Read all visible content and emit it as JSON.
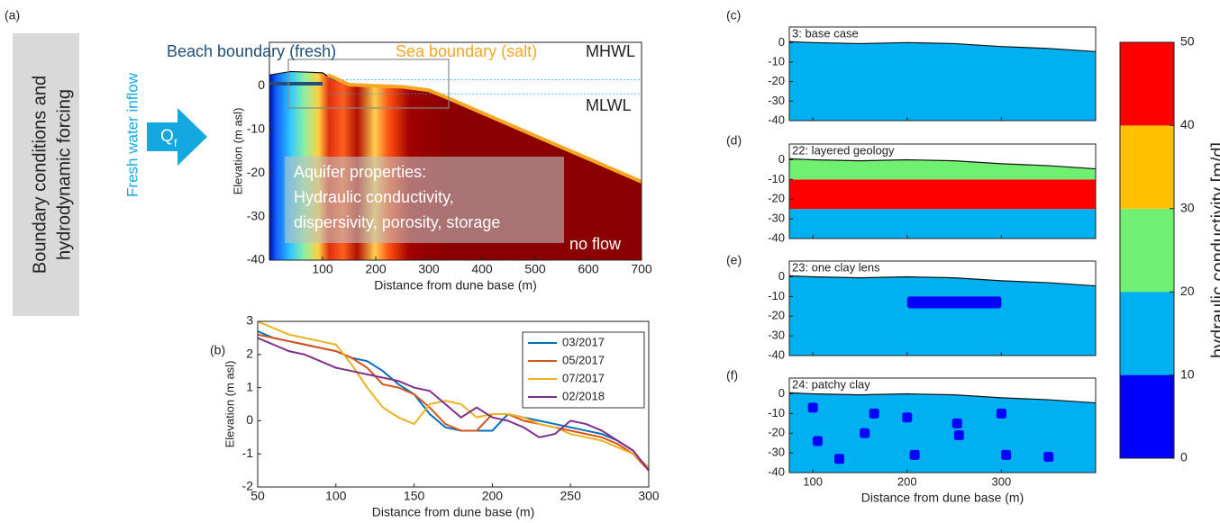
{
  "side_label": [
    "Boundary conditions and",
    "hydrodynamic forcing"
  ],
  "inflow": {
    "label": "Fresh water inflow",
    "q": "Q",
    "q_sub": "f"
  },
  "chart_data": [
    {
      "type": "overview",
      "panel": "(a)",
      "xlabel": "Distance from dune base (m)",
      "ylabel": "Elevation (m asl)",
      "xlim": [
        0,
        700
      ],
      "ylim": [
        -40,
        10
      ],
      "xticks": [
        100,
        200,
        300,
        400,
        500,
        600,
        700
      ],
      "yticks": [
        -40,
        -30,
        -20,
        -10,
        0
      ],
      "surface": {
        "x": [
          0,
          40,
          100,
          120,
          160,
          200,
          250,
          300,
          330,
          700
        ],
        "y": [
          2.5,
          3.3,
          3,
          1.5,
          0,
          0.2,
          0,
          -1,
          -2.5,
          -22
        ]
      },
      "beach_boundary": {
        "label": "Beach boundary (fresh)",
        "color": "#1f4e79",
        "x": [
          0,
          100
        ],
        "y": [
          0.5,
          0.5
        ]
      },
      "sea_boundary": {
        "label": "Sea boundary (salt)",
        "color": "#f5a623",
        "x": [
          110,
          150,
          200,
          250,
          300,
          330,
          700
        ],
        "y": [
          2.5,
          0.3,
          0,
          -0.2,
          -1,
          -2.5,
          -22
        ]
      },
      "mhwl": {
        "label": "MHWL",
        "y": 1.4
      },
      "mlwl": {
        "label": "MLWL",
        "y": -1.8
      },
      "annotations": [
        "Aquifer properties:",
        "Hydraulic conductivity,",
        "dispersivity, porosity, storage",
        "no flow"
      ]
    },
    {
      "type": "line",
      "panel": "(b)",
      "xlabel": "Distance from dune base (m)",
      "ylabel": "Elevation (m asl)",
      "xlim": [
        50,
        300
      ],
      "ylim": [
        -2,
        3
      ],
      "xticks": [
        50,
        100,
        150,
        200,
        250,
        300
      ],
      "yticks": [
        -2,
        -1,
        0,
        1,
        2,
        3
      ],
      "x": [
        50,
        60,
        70,
        80,
        90,
        100,
        110,
        120,
        130,
        140,
        150,
        160,
        170,
        180,
        190,
        200,
        210,
        220,
        230,
        240,
        250,
        260,
        270,
        280,
        290,
        300
      ],
      "series": [
        {
          "name": "03/2017",
          "color": "#0072bd",
          "values": [
            2.7,
            2.5,
            2.4,
            2.3,
            2.2,
            2.1,
            1.9,
            1.8,
            1.5,
            1.1,
            0.8,
            0.2,
            -0.2,
            -0.3,
            -0.3,
            -0.3,
            0.2,
            0.1,
            0.0,
            -0.1,
            -0.2,
            -0.3,
            -0.4,
            -0.6,
            -0.9,
            -1.5
          ]
        },
        {
          "name": "05/2017",
          "color": "#d95319",
          "values": [
            2.6,
            2.5,
            2.4,
            2.3,
            2.2,
            2.1,
            1.9,
            1.6,
            1.1,
            1.0,
            0.8,
            0.4,
            -0.1,
            -0.3,
            -0.3,
            0.2,
            0.2,
            0.0,
            -0.1,
            -0.2,
            -0.3,
            -0.4,
            -0.5,
            -0.7,
            -1.0,
            -1.5
          ]
        },
        {
          "name": "07/2017",
          "color": "#edb120",
          "values": [
            3.0,
            2.8,
            2.6,
            2.5,
            2.4,
            2.3,
            1.7,
            1.0,
            0.4,
            0.1,
            -0.1,
            0.5,
            0.6,
            0.5,
            0.1,
            0.2,
            0.2,
            0.1,
            -0.1,
            -0.2,
            -0.4,
            -0.5,
            -0.6,
            -0.8,
            -1.0,
            -1.4
          ]
        },
        {
          "name": "02/2018",
          "color": "#7e2f8e",
          "values": [
            2.5,
            2.3,
            2.1,
            2.0,
            1.8,
            1.6,
            1.5,
            1.4,
            1.3,
            1.2,
            1.0,
            0.9,
            0.5,
            0.1,
            0.4,
            0.1,
            0.0,
            -0.2,
            -0.5,
            -0.4,
            0.0,
            -0.1,
            -0.3,
            -0.6,
            -0.9,
            -1.5
          ]
        }
      ]
    },
    {
      "type": "section",
      "panel": "(c)",
      "title": "3: base case",
      "xlim": [
        75,
        400
      ],
      "ylim": [
        -40,
        8
      ],
      "xticks": [
        100,
        200,
        300
      ],
      "yticks": [
        -40,
        -30,
        -20,
        -10,
        0
      ],
      "show_xticklabels": false,
      "surface": {
        "x": [
          75,
          100,
          150,
          200,
          250,
          300,
          350,
          400
        ],
        "y": [
          0.5,
          0,
          -0.5,
          0,
          -0.5,
          -2,
          -3,
          -4.6
        ]
      },
      "layers": [
        {
          "from": -40,
          "to": 8,
          "color": "#00b0f0"
        }
      ]
    },
    {
      "type": "section",
      "panel": "(d)",
      "title": "22: layered geology",
      "xlim": [
        75,
        400
      ],
      "ylim": [
        -40,
        8
      ],
      "xticks": [
        100,
        200,
        300
      ],
      "yticks": [
        -40,
        -30,
        -20,
        -10,
        0
      ],
      "show_xticklabels": false,
      "surface": {
        "x": [
          75,
          100,
          150,
          200,
          250,
          300,
          350,
          400
        ],
        "y": [
          0.5,
          0,
          -0.5,
          0,
          -0.5,
          -2,
          -3,
          -4.6
        ]
      },
      "layers": [
        {
          "from": -40,
          "to": -25,
          "color": "#00b0f0"
        },
        {
          "from": -25,
          "to": -10,
          "color": "#ff0000"
        },
        {
          "from": -10,
          "to": 8,
          "color": "#70f070"
        }
      ]
    },
    {
      "type": "section",
      "panel": "(e)",
      "title": "23: one clay lens",
      "xlim": [
        75,
        400
      ],
      "ylim": [
        -40,
        8
      ],
      "xticks": [
        100,
        200,
        300
      ],
      "yticks": [
        -40,
        -30,
        -20,
        -10,
        0
      ],
      "show_xticklabels": false,
      "surface": {
        "x": [
          75,
          100,
          150,
          200,
          250,
          300,
          350,
          400
        ],
        "y": [
          0.5,
          0,
          -0.5,
          0,
          -0.5,
          -2,
          -3,
          -4.6
        ]
      },
      "layers": [
        {
          "from": -40,
          "to": 8,
          "color": "#00b0f0"
        }
      ],
      "lens": {
        "x": [
          200,
          300
        ],
        "y": [
          -10,
          -16
        ],
        "color": "#0000ff"
      }
    },
    {
      "type": "section",
      "panel": "(f)",
      "title": "24: patchy clay",
      "xlabel": "Distance from dune base (m)",
      "xlim": [
        75,
        400
      ],
      "ylim": [
        -40,
        8
      ],
      "xticks": [
        100,
        200,
        300
      ],
      "yticks": [
        -40,
        -30,
        -20,
        -10,
        0
      ],
      "show_xticklabels": true,
      "surface": {
        "x": [
          75,
          100,
          150,
          200,
          250,
          300,
          350,
          400
        ],
        "y": [
          0.5,
          0,
          -0.5,
          0,
          -0.5,
          -2,
          -3,
          -4.6
        ]
      },
      "layers": [
        {
          "from": -40,
          "to": 8,
          "color": "#00b0f0"
        }
      ],
      "patches": {
        "color": "#0000ff",
        "x": [
          100,
          105,
          128,
          155,
          165,
          200,
          208,
          253,
          255,
          300,
          305,
          350
        ],
        "y": [
          -7,
          -24,
          -33,
          -20,
          -10,
          -12,
          -31,
          -15,
          -21,
          -10,
          -31,
          -32
        ]
      }
    },
    {
      "type": "colorbar",
      "label": "hydraulic conductivity [m/d]",
      "ylim": [
        0,
        50
      ],
      "yticks": [
        0,
        10,
        20,
        30,
        40,
        50
      ],
      "colors": [
        "#0000ff",
        "#00b0f0",
        "#70f070",
        "#ffc000",
        "#ff0000"
      ]
    }
  ]
}
